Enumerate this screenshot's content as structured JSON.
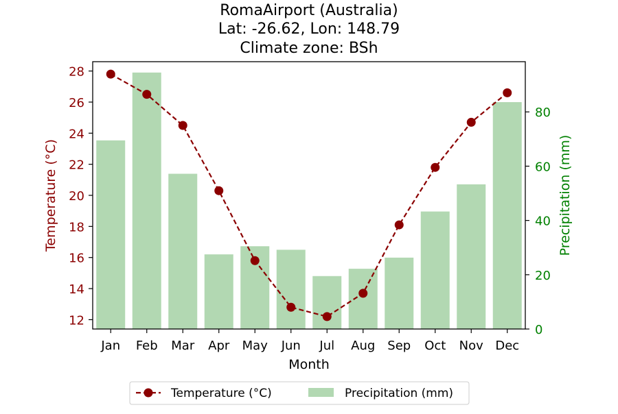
{
  "chart_data": {
    "type": "bar+line",
    "title_lines": [
      "RomaAirport (Australia)",
      "Lat: -26.62, Lon: 148.79",
      "Climate zone: BSh"
    ],
    "categories": [
      "Jan",
      "Feb",
      "Mar",
      "Apr",
      "May",
      "Jun",
      "Jul",
      "Aug",
      "Sep",
      "Oct",
      "Nov",
      "Dec"
    ],
    "xlabel": "Month",
    "ylabel_left": "Temperature (°C)",
    "ylabel_right": "Precipitation (mm)",
    "ylim_left": [
      11.4,
      28.6
    ],
    "ylim_right": [
      0,
      98.5
    ],
    "yticks_left": [
      12,
      14,
      16,
      18,
      20,
      22,
      24,
      26,
      28
    ],
    "yticks_right": [
      0,
      20,
      40,
      60,
      80
    ],
    "grid": false,
    "legend_position": "bottom-center",
    "series": [
      {
        "name": "Temperature (°C)",
        "kind": "line",
        "axis": "left",
        "color": "#8b0000",
        "values": [
          27.8,
          26.5,
          24.5,
          20.3,
          15.8,
          12.8,
          12.2,
          13.7,
          18.1,
          21.8,
          24.7,
          26.6
        ]
      },
      {
        "name": "Precipitation (mm)",
        "kind": "bar",
        "axis": "right",
        "color": "#b2d8b2",
        "values": [
          69.5,
          94.5,
          57.2,
          27.5,
          30.5,
          29.2,
          19.5,
          22.2,
          26.3,
          43.3,
          53.3,
          83.6
        ]
      }
    ],
    "colors": {
      "temperature_axis": "#8b0000",
      "precipitation_axis": "#008000",
      "neutral": "#000000"
    }
  }
}
